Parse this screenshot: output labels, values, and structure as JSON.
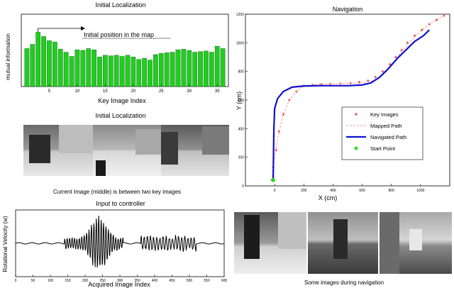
{
  "chart_data": [
    {
      "type": "bar",
      "title": "Initial Localization",
      "xlabel": "Key Image Index",
      "ylabel": "mutual information",
      "annotation": "Initial position in the map",
      "xticks": [
        "5",
        "10",
        "15",
        "20",
        "25",
        "30",
        "35"
      ],
      "x": [
        1,
        2,
        3,
        4,
        5,
        6,
        7,
        8,
        9,
        10,
        11,
        12,
        13,
        14,
        15,
        16,
        17,
        18,
        19,
        20,
        21,
        22,
        23,
        24,
        25,
        26,
        27,
        28,
        29,
        30,
        31,
        32,
        33,
        34,
        35,
        36
      ],
      "values": [
        0.63,
        0.7,
        0.9,
        0.83,
        0.76,
        0.74,
        0.62,
        0.57,
        0.5,
        0.61,
        0.6,
        0.63,
        0.61,
        0.49,
        0.52,
        0.51,
        0.52,
        0.5,
        0.52,
        0.49,
        0.45,
        0.47,
        0.44,
        0.53,
        0.55,
        0.56,
        0.57,
        0.61,
        0.62,
        0.6,
        0.57,
        0.58,
        0.59,
        0.57,
        0.67,
        0.63
      ],
      "xlim": [
        0,
        37
      ],
      "ylim": [
        0,
        1.2
      ],
      "color": "#22cc22"
    },
    {
      "type": "line",
      "title": "Navigation",
      "xlabel": "X (cm)",
      "ylabel": "Y (cm)",
      "xlim": [
        -200,
        1200
      ],
      "ylim": [
        0,
        1200
      ],
      "xticks": [
        "0",
        "200",
        "400",
        "600",
        "800",
        "1000"
      ],
      "xtick_values": [
        0,
        200,
        400,
        600,
        800,
        1000
      ],
      "yticks": [
        "0",
        "200",
        "400",
        "600",
        "800",
        "1000",
        "1200"
      ],
      "ytick_values": [
        0,
        200,
        400,
        600,
        800,
        1000,
        1200
      ],
      "legend_position": "center-right",
      "series": [
        {
          "name": "Key Images",
          "color": "#e02020",
          "style": "markers",
          "x": [
            -20,
            -10,
            10,
            30,
            60,
            100,
            150,
            200,
            260,
            320,
            380,
            450,
            520,
            580,
            640,
            690,
            740,
            790,
            830,
            870,
            910,
            960,
            1010,
            1060,
            1110,
            1160
          ],
          "y": [
            40,
            130,
            250,
            380,
            500,
            600,
            660,
            700,
            705,
            710,
            712,
            715,
            718,
            725,
            735,
            760,
            800,
            850,
            900,
            950,
            1000,
            1050,
            1090,
            1130,
            1160,
            1190
          ]
        },
        {
          "name": "Mapped Path",
          "color": "#f08080",
          "style": "dashed",
          "x": [
            -20,
            0,
            30,
            60,
            100,
            150,
            200,
            300,
            400,
            500,
            600,
            700,
            760,
            820,
            880,
            940,
            1000,
            1060,
            1110,
            1160
          ],
          "y": [
            40,
            200,
            380,
            500,
            600,
            660,
            700,
            710,
            713,
            716,
            720,
            740,
            790,
            870,
            950,
            1020,
            1080,
            1130,
            1160,
            1190
          ]
        },
        {
          "name": "Navigated Path",
          "color": "#1010d0",
          "style": "solid",
          "x": [
            -10,
            -8,
            -5,
            0,
            20,
            60,
            120,
            200,
            300,
            400,
            500,
            600,
            660,
            720,
            780,
            840,
            900,
            960,
            1020,
            1060
          ],
          "y": [
            40,
            200,
            400,
            540,
            610,
            660,
            690,
            698,
            700,
            700,
            700,
            705,
            720,
            760,
            820,
            890,
            950,
            1010,
            1050,
            1090
          ]
        },
        {
          "name": "Start Point",
          "color": "#22dd22",
          "style": "point",
          "x": [
            -10
          ],
          "y": [
            40
          ]
        }
      ]
    },
    {
      "type": "line",
      "title": "Input to controller",
      "xlabel": "Acquired Image Index",
      "ylabel": "Rotational Velocity (w)",
      "xlim": [
        0,
        600
      ],
      "ylim": [
        -1,
        1
      ],
      "xticks": [
        "0",
        "50",
        "100",
        "150",
        "200",
        "250",
        "300",
        "350",
        "400",
        "450",
        "500",
        "550",
        "600"
      ],
      "xtick_values": [
        0,
        50,
        100,
        150,
        200,
        250,
        300,
        350,
        400,
        450,
        500,
        550,
        600
      ],
      "color": "#000000"
    }
  ],
  "captions": {
    "initial_localization_images": "Initial Localization",
    "current_image_note": "Current Image (middle) is between two key images",
    "navigation_images": "Some images during navigation"
  }
}
